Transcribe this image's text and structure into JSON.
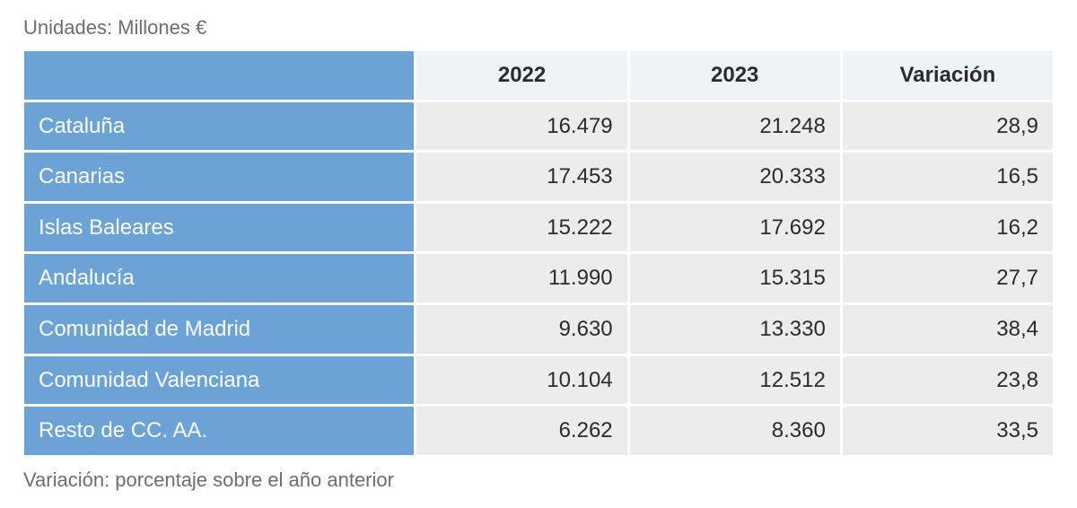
{
  "caption": "Unidades: Millones €",
  "footnote": "Variación: porcentaje sobre el año anterior",
  "table": {
    "type": "table",
    "header_bg": "#eef3f7",
    "rowhead_bg": "#6ba3d6",
    "cell_bg": "#ececec",
    "border_color": "#ffffff",
    "text_color": "#2b2b2b",
    "rowhead_text_color": "#ffffff",
    "caption_color": "#6a6f73",
    "font_size_pt": 18,
    "columns": [
      "",
      "2022",
      "2023",
      "Variación"
    ],
    "col_widths_pct": [
      38,
      20.6,
      20.6,
      20.6
    ],
    "col_align": [
      "left",
      "right",
      "right",
      "right"
    ],
    "rows": [
      {
        "label": "Cataluña",
        "v2022": "16.479",
        "v2023": "21.248",
        "var": "28,9"
      },
      {
        "label": "Canarias",
        "v2022": "17.453",
        "v2023": "20.333",
        "var": "16,5"
      },
      {
        "label": "Islas Baleares",
        "v2022": "15.222",
        "v2023": "17.692",
        "var": "16,2"
      },
      {
        "label": "Andalucía",
        "v2022": "11.990",
        "v2023": "15.315",
        "var": "27,7"
      },
      {
        "label": "Comunidad de Madrid",
        "v2022": "9.630",
        "v2023": "13.330",
        "var": "38,4"
      },
      {
        "label": "Comunidad Valenciana",
        "v2022": "10.104",
        "v2023": "12.512",
        "var": "23,8"
      },
      {
        "label": "Resto de CC. AA.",
        "v2022": "6.262",
        "v2023": "8.360",
        "var": "33,5"
      }
    ]
  }
}
